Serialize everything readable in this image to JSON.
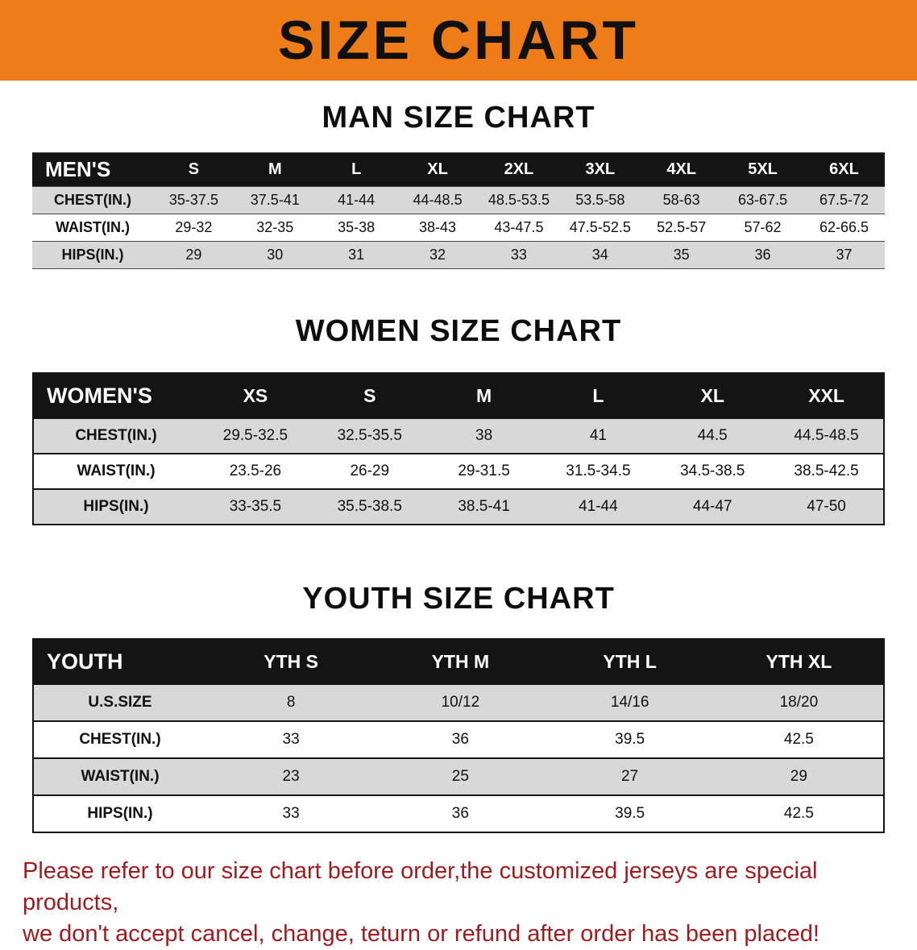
{
  "colors": {
    "banner_bg": "#ee7c18",
    "banner_text": "#101010",
    "table_header_bg": "#141414",
    "table_header_text": "#ffffff",
    "row_alt_bg": "#d8d8d8",
    "footer_text": "#9e1b1e"
  },
  "banner": {
    "title": "SIZE CHART"
  },
  "sections": {
    "men": {
      "title": "MAN SIZE CHART",
      "corner": "MEN'S",
      "sizes": [
        "S",
        "M",
        "L",
        "XL",
        "2XL",
        "3XL",
        "4XL",
        "5XL",
        "6XL"
      ],
      "rows": [
        {
          "label": "CHEST(IN.)",
          "values": [
            "35-37.5",
            "37.5-41",
            "41-44",
            "44-48.5",
            "48.5-53.5",
            "53.5-58",
            "58-63",
            "63-67.5",
            "67.5-72"
          ]
        },
        {
          "label": "WAIST(IN.)",
          "values": [
            "29-32",
            "32-35",
            "35-38",
            "38-43",
            "43-47.5",
            "47.5-52.5",
            "52.5-57",
            "57-62",
            "62-66.5"
          ]
        },
        {
          "label": "HIPS(IN.)",
          "values": [
            "29",
            "30",
            "31",
            "32",
            "33",
            "34",
            "35",
            "36",
            "37"
          ]
        }
      ]
    },
    "women": {
      "title": "WOMEN SIZE CHART",
      "corner": "WOMEN'S",
      "sizes": [
        "XS",
        "S",
        "M",
        "L",
        "XL",
        "XXL"
      ],
      "rows": [
        {
          "label": "CHEST(IN.)",
          "values": [
            "29.5-32.5",
            "32.5-35.5",
            "38",
            "41",
            "44.5",
            "44.5-48.5"
          ]
        },
        {
          "label": "WAIST(IN.)",
          "values": [
            "23.5-26",
            "26-29",
            "29-31.5",
            "31.5-34.5",
            "34.5-38.5",
            "38.5-42.5"
          ]
        },
        {
          "label": "HIPS(IN.)",
          "values": [
            "33-35.5",
            "35.5-38.5",
            "38.5-41",
            "41-44",
            "44-47",
            "47-50"
          ]
        }
      ]
    },
    "youth": {
      "title": "YOUTH SIZE CHART",
      "corner": "YOUTH",
      "sizes": [
        "YTH S",
        "YTH M",
        "YTH L",
        "YTH XL"
      ],
      "rows": [
        {
          "label": "U.S.SIZE",
          "values": [
            "8",
            "10/12",
            "14/16",
            "18/20"
          ]
        },
        {
          "label": "CHEST(IN.)",
          "values": [
            "33",
            "36",
            "39.5",
            "42.5"
          ]
        },
        {
          "label": "WAIST(IN.)",
          "values": [
            "23",
            "25",
            "27",
            "29"
          ]
        },
        {
          "label": "HIPS(IN.)",
          "values": [
            "33",
            "36",
            "39.5",
            "42.5"
          ]
        }
      ]
    }
  },
  "footer": {
    "line1": "Please refer to our size chart before order,the customized jerseys are special products,",
    "line2": "we don't accept cancel, change, teturn or refund after order has been placed!"
  }
}
